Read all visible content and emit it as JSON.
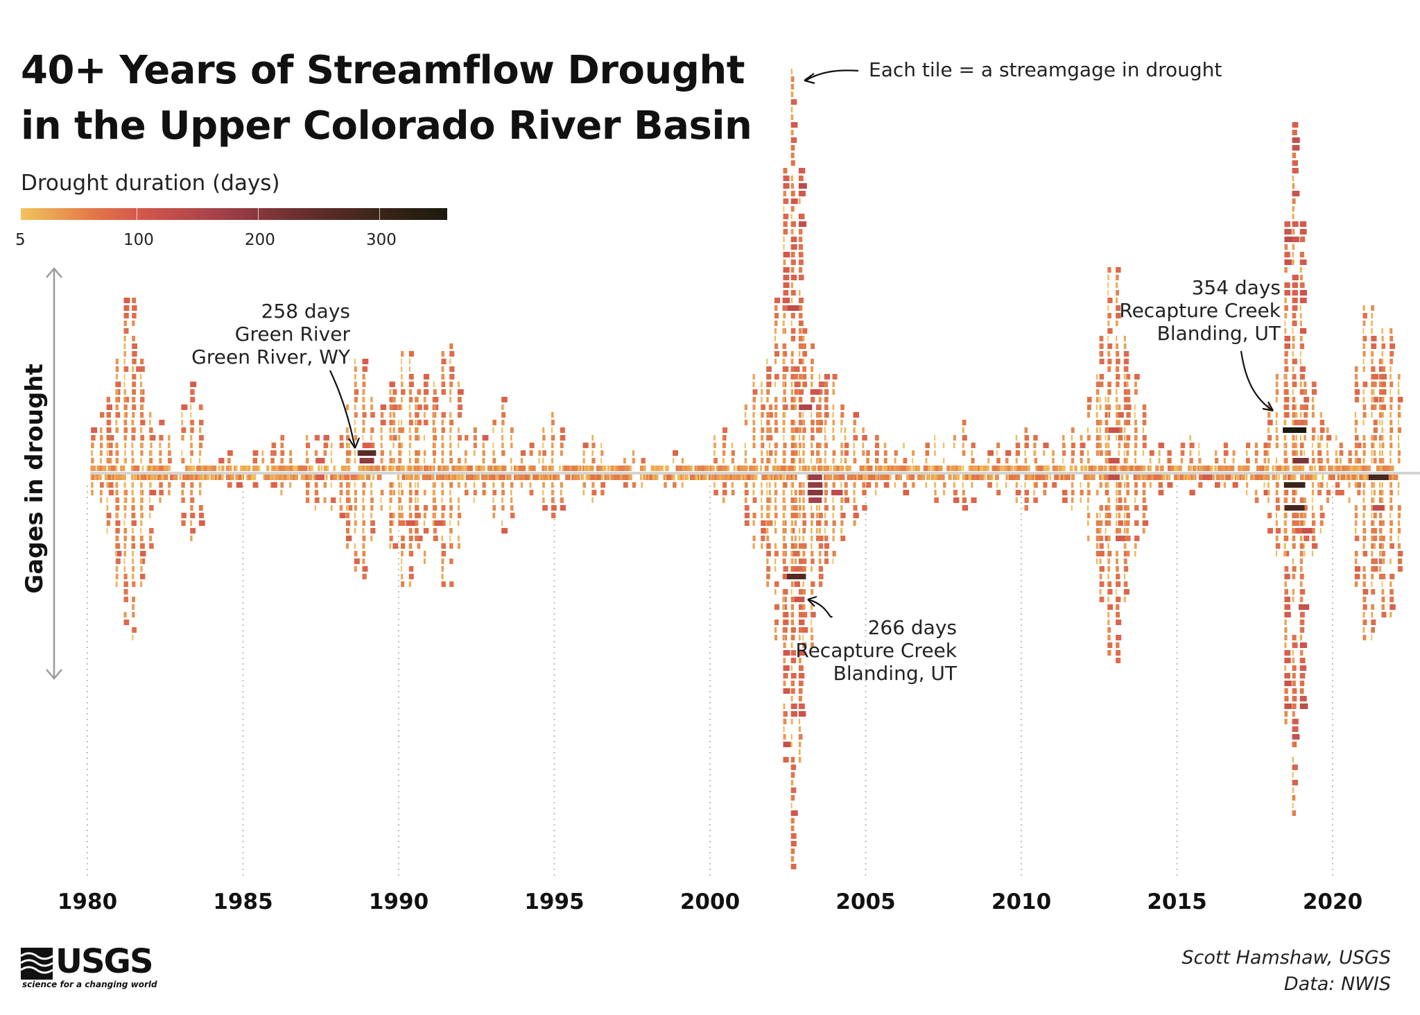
{
  "title_lines": [
    "40+ Years of Streamflow Drought",
    "in the Upper Colorado River Basin"
  ],
  "legend": {
    "title": "Drought duration (days)",
    "ticks": [
      "5",
      "100",
      "200",
      "300"
    ],
    "tick_values": [
      5,
      100,
      200,
      300
    ],
    "range": [
      5,
      354
    ],
    "colors": [
      "#f2c35c",
      "#e37749",
      "#d6594b",
      "#a6414a",
      "#6b2f2e",
      "#3c2418",
      "#1b1a0f"
    ]
  },
  "ylabel": "Gages in drought",
  "annotations": {
    "tile_note": "Each tile = a streamgage in drought",
    "event_1988": [
      "258 days",
      "Green River",
      "Green River, WY"
    ],
    "event_2002": [
      "266 days",
      "Recapture Creek",
      "Blanding, UT"
    ],
    "event_2018": [
      "354 days",
      "Recapture Creek",
      "Blanding, UT"
    ]
  },
  "credits": [
    "Scott Hamshaw, USGS",
    "Data: NWIS"
  ],
  "logo": {
    "text": "USGS",
    "tagline": "science for a changing world"
  },
  "chart_data": {
    "type": "tile-streamgraph",
    "xlabel": "",
    "ylabel": "Gages in drought",
    "x_ticks": [
      1980,
      1985,
      1990,
      1995,
      2000,
      2005,
      2010,
      2015,
      2020
    ],
    "x_tick_labels": [
      "1980",
      "1985",
      "1990",
      "1995",
      "2000",
      "2005",
      "2010",
      "2015",
      "2020"
    ],
    "xlim": [
      1978,
      2022.5
    ],
    "peaks": [
      {
        "year": 1980.4,
        "up": 7,
        "down": 3
      },
      {
        "year": 1980.9,
        "up": 12,
        "down": 10
      },
      {
        "year": 1981.3,
        "up": 25,
        "down": 24
      },
      {
        "year": 1981.7,
        "up": 10,
        "down": 12
      },
      {
        "year": 1982.3,
        "up": 6,
        "down": 3
      },
      {
        "year": 1983.3,
        "up": 11,
        "down": 8
      },
      {
        "year": 1984.5,
        "up": 2,
        "down": 1
      },
      {
        "year": 1985.6,
        "up": 3,
        "down": 2
      },
      {
        "year": 1986.2,
        "up": 4,
        "down": 2
      },
      {
        "year": 1987.3,
        "up": 5,
        "down": 4
      },
      {
        "year": 1988.1,
        "up": 4,
        "down": 5
      },
      {
        "year": 1988.7,
        "up": 16,
        "down": 15
      },
      {
        "year": 1989.7,
        "up": 11,
        "down": 9
      },
      {
        "year": 1990.2,
        "up": 17,
        "down": 16
      },
      {
        "year": 1990.8,
        "up": 12,
        "down": 11
      },
      {
        "year": 1991.5,
        "up": 19,
        "down": 16
      },
      {
        "year": 1992.4,
        "up": 5,
        "down": 3
      },
      {
        "year": 1993.3,
        "up": 9,
        "down": 7
      },
      {
        "year": 1994.2,
        "up": 3,
        "down": 2
      },
      {
        "year": 1994.9,
        "up": 7,
        "down": 5
      },
      {
        "year": 1996.2,
        "up": 4,
        "down": 3
      },
      {
        "year": 1997.5,
        "up": 2,
        "down": 1
      },
      {
        "year": 1998.8,
        "up": 2,
        "down": 1
      },
      {
        "year": 2000.4,
        "up": 6,
        "down": 3
      },
      {
        "year": 2001.5,
        "up": 14,
        "down": 10
      },
      {
        "year": 2002.2,
        "up": 25,
        "down": 24
      },
      {
        "year": 2002.6,
        "up": 54,
        "down": 51
      },
      {
        "year": 2003.1,
        "up": 22,
        "down": 25
      },
      {
        "year": 2003.8,
        "up": 14,
        "down": 13
      },
      {
        "year": 2004.6,
        "up": 7,
        "down": 6
      },
      {
        "year": 2005.3,
        "up": 4,
        "down": 2
      },
      {
        "year": 2006.2,
        "up": 3,
        "down": 2
      },
      {
        "year": 2007.2,
        "up": 4,
        "down": 3
      },
      {
        "year": 2008.1,
        "up": 6,
        "down": 4
      },
      {
        "year": 2009.2,
        "up": 3,
        "down": 2
      },
      {
        "year": 2010.1,
        "up": 6,
        "down": 4
      },
      {
        "year": 2010.7,
        "up": 3,
        "down": 2
      },
      {
        "year": 2011.6,
        "up": 5,
        "down": 4
      },
      {
        "year": 2012.4,
        "up": 12,
        "down": 11
      },
      {
        "year": 2012.9,
        "up": 30,
        "down": 28
      },
      {
        "year": 2013.5,
        "up": 14,
        "down": 12
      },
      {
        "year": 2014.4,
        "up": 3,
        "down": 2
      },
      {
        "year": 2015.4,
        "up": 4,
        "down": 2
      },
      {
        "year": 2016.5,
        "up": 3,
        "down": 2
      },
      {
        "year": 2017.5,
        "up": 4,
        "down": 3
      },
      {
        "year": 2018.3,
        "up": 14,
        "down": 12
      },
      {
        "year": 2018.7,
        "up": 45,
        "down": 44
      },
      {
        "year": 2019.2,
        "up": 13,
        "down": 12
      },
      {
        "year": 2019.8,
        "up": 6,
        "down": 3
      },
      {
        "year": 2020.5,
        "up": 4,
        "down": 3
      },
      {
        "year": 2021.1,
        "up": 24,
        "down": 24
      },
      {
        "year": 2021.7,
        "up": 21,
        "down": 21
      }
    ],
    "highlighted_events": [
      {
        "year": 1988.8,
        "duration_days": 258,
        "river": "Green River",
        "location": "Green River, WY"
      },
      {
        "year": 2002.9,
        "duration_days": 266,
        "river": "Recapture Creek",
        "location": "Blanding, UT"
      },
      {
        "year": 2018.6,
        "duration_days": 354,
        "river": "Recapture Creek",
        "location": "Blanding, UT"
      }
    ]
  }
}
